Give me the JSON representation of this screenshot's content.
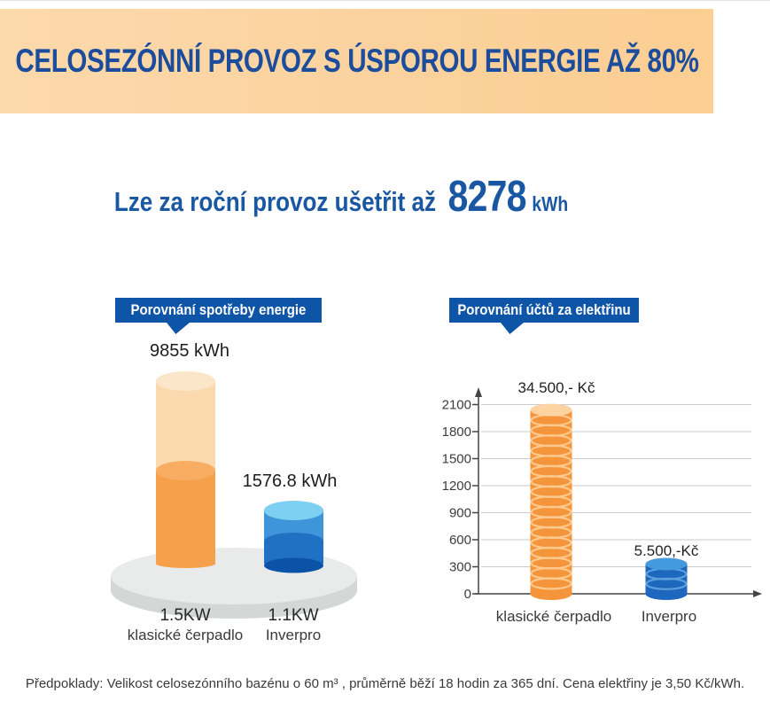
{
  "banner": {
    "title": "CELOSEZÓNNÍ PROVOZ S ÚSPOROU ENERGIE AŽ 80%"
  },
  "headline": {
    "prefix": "Lze za roční provoz ušetřit až",
    "value": "8278",
    "unit": "kWh"
  },
  "theme": {
    "banner_bg": "#fbd29e",
    "title_blue": "#1b4d9c",
    "headline_blue": "#1a57a3",
    "header_box_blue": "#0e55a7",
    "platform_gray": "#e8ebea",
    "axis_gray": "#444444",
    "grid_gray": "#cbcbcb"
  },
  "chart_data": [
    {
      "type": "bar",
      "style": "3d-cylinders-on-platform",
      "title": "Porovnání spotřeby energie",
      "categories": [
        "klasické čerpadlo",
        "Inverpro"
      ],
      "category_power": [
        "1.5KW",
        "1.1KW"
      ],
      "values": [
        9855,
        1576.8
      ],
      "unit": "kWh",
      "data_labels": [
        "9855 kWh",
        "1576.8 kWh"
      ],
      "colors": [
        "#f7a04c",
        "#2f86d3"
      ],
      "grid": false,
      "legend": false
    },
    {
      "type": "bar",
      "style": "coin-stack",
      "title": "Porovnání účtů za elektřinu",
      "categories": [
        "klasické čerpadlo",
        "Inverpro"
      ],
      "values": [
        34500,
        5500
      ],
      "unit": "Kč",
      "data_labels": [
        "34.500,- Kč",
        "5.500,-Kč"
      ],
      "yticks": [
        0,
        300,
        600,
        900,
        1200,
        1500,
        1800,
        2100
      ],
      "ylim": [
        0,
        2250
      ],
      "bar_tops_on_axis": [
        2040,
        330
      ],
      "grid": true,
      "legend": false,
      "colors": [
        "#f5953b",
        "#1d68bc"
      ],
      "coin_highlights": [
        "#fcc98f",
        "#5e9fdd"
      ],
      "coin_tops": [
        "#fdd3a1",
        "#459ade"
      ]
    }
  ],
  "footer": {
    "note": "Předpoklady: Velikost celosezónního bazénu o 60 m³ , průměrně běží 18 hodin za 365 dní. Cena elektřiny je 3,50 Kč/kWh."
  }
}
